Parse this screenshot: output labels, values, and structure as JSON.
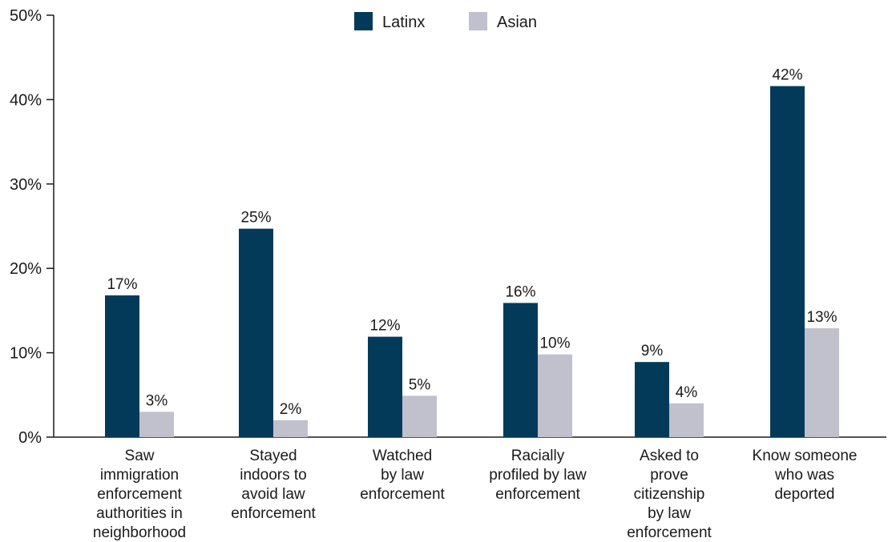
{
  "chart_data": {
    "type": "bar",
    "categories": [
      [
        "Saw",
        "immigration",
        "enforcement",
        "authorities in",
        "neighborhood"
      ],
      [
        "Stayed",
        "indoors to",
        "avoid law",
        "enforcement"
      ],
      [
        "Watched",
        "by law",
        "enforcement"
      ],
      [
        "Racially",
        "profiled by law",
        "enforcement"
      ],
      [
        "Asked to",
        "prove",
        "citizenship",
        "by law",
        "enforcement"
      ],
      [
        "Know someone",
        "who was",
        "deported"
      ]
    ],
    "series": [
      {
        "name": "Latinx",
        "color": "#033a5a",
        "values": [
          16.8,
          24.7,
          11.9,
          15.9,
          8.9,
          41.6
        ],
        "labels": [
          "17%",
          "25%",
          "12%",
          "16%",
          "9%",
          "42%"
        ]
      },
      {
        "name": "Asian",
        "color": "#c0c1cc",
        "values": [
          3.0,
          2.0,
          4.9,
          9.8,
          4.0,
          12.9
        ],
        "labels": [
          "3%",
          "2%",
          "5%",
          "10%",
          "4%",
          "13%"
        ]
      }
    ],
    "yticks": [
      "0%",
      "10%",
      "20%",
      "30%",
      "40%",
      "50%"
    ],
    "ylim": [
      0,
      50
    ],
    "legend_position": "top-center",
    "grid": false
  }
}
